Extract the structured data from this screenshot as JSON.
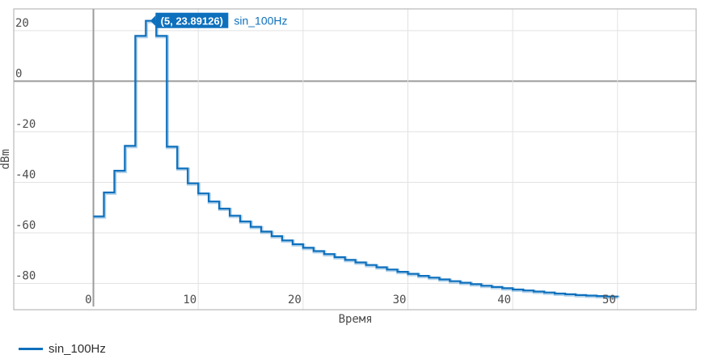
{
  "chart_data": {
    "type": "line",
    "step": "after",
    "title": "",
    "xlabel": "Время",
    "ylabel": "dBm",
    "x_ticks": [
      0,
      10,
      20,
      30,
      40,
      50
    ],
    "y_ticks": [
      20,
      0,
      -20,
      -40,
      -60,
      -80
    ],
    "xlim": [
      -7.6,
      57.5
    ],
    "ylim": [
      -90.4,
      28.6
    ],
    "grid": true,
    "legend_position": "bottom-left",
    "series": [
      {
        "name": "sin_100Hz",
        "color": "#0e70bd",
        "x_start": 0,
        "x_step": 1,
        "values": [
          -53.5,
          -44.0,
          -35.4,
          -25.6,
          17.9,
          23.89126,
          17.9,
          -25.9,
          -34.5,
          -40.4,
          -44.4,
          -47.6,
          -50.4,
          -53.2,
          -55.5,
          -57.6,
          -59.5,
          -61.3,
          -63.0,
          -64.5,
          -65.9,
          -67.2,
          -68.4,
          -69.6,
          -70.7,
          -71.7,
          -72.7,
          -73.6,
          -74.5,
          -75.4,
          -76.2,
          -77.0,
          -77.7,
          -78.4,
          -79.1,
          -79.7,
          -80.3,
          -80.9,
          -81.4,
          -81.9,
          -82.4,
          -82.8,
          -83.2,
          -83.6,
          -84.0,
          -84.3,
          -84.6,
          -84.8,
          -85.0,
          -85.2,
          -85.3
        ]
      }
    ],
    "annotation": {
      "x": 5,
      "y": 23.89126,
      "label": "(5, 23.89126)",
      "series_label": "sin_100Hz"
    }
  },
  "legend": {
    "items": [
      {
        "label": "sin_100Hz",
        "color": "#0e70bd"
      }
    ]
  },
  "colors": {
    "line": "#0e70bd",
    "tooltip_bg": "#0e70bd",
    "grid": "#e2e2e2",
    "zero_axis": "#9c9c9c",
    "border": "#ababab",
    "tick_text": "#4c4c4c"
  }
}
